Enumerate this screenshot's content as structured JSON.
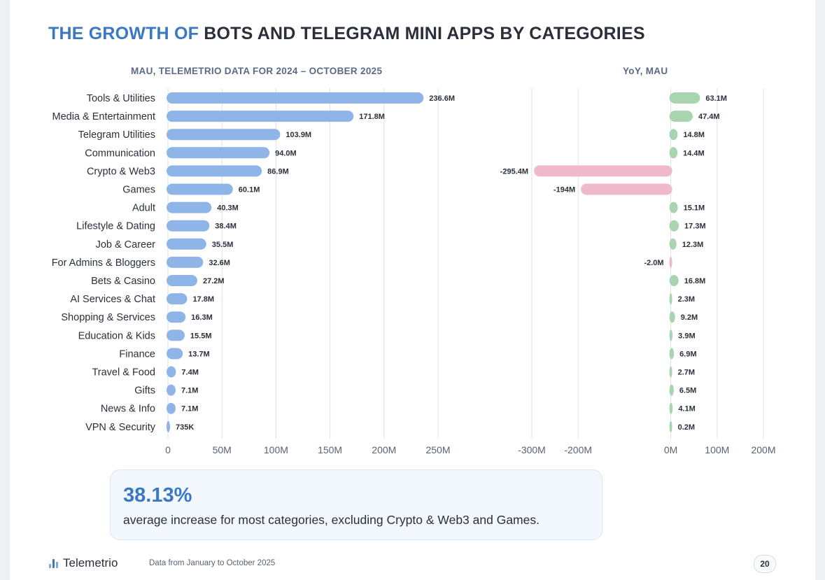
{
  "title": {
    "accent": "THE GROWTH OF",
    "rest": "BOTS AND TELEGRAM MINI APPS BY CATEGORIES"
  },
  "colors": {
    "accent": "#3b78c4",
    "mau_bar": "#8fb4e8",
    "positive_bar": "#a8d5b0",
    "negative_bar": "#f0b8cb",
    "grid": "#dde1e8"
  },
  "chart_data": [
    {
      "type": "bar",
      "orientation": "horizontal",
      "title": "MAU, TELEMETRIO DATA FOR 2024 – OCTOBER 2025",
      "categories": [
        "Tools & Utilities",
        "Media & Entertainment",
        "Telegram Utilities",
        "Communication",
        "Crypto & Web3",
        "Games",
        "Adult",
        "Lifestyle & Dating",
        "Job & Career",
        "For Admins & Bloggers",
        "Bets & Casino",
        "AI Services & Chat",
        "Shopping & Services",
        "Education & Kids",
        "Finance",
        "Travel & Food",
        "Gifts",
        "News & Info",
        "VPN & Security"
      ],
      "values": [
        236.6,
        171.8,
        103.9,
        94.0,
        86.9,
        60.1,
        40.3,
        38.4,
        35.5,
        32.6,
        27.2,
        17.8,
        16.3,
        15.5,
        13.7,
        7.4,
        7.1,
        7.1,
        0.735
      ],
      "value_labels": [
        "236.6M",
        "171.8M",
        "103.9M",
        "94.0M",
        "86.9M",
        "60.1M",
        "40.3M",
        "38.4M",
        "35.5M",
        "32.6M",
        "27.2M",
        "17.8M",
        "16.3M",
        "15.5M",
        "13.7M",
        "7.4M",
        "7.1M",
        "7.1M",
        "735K"
      ],
      "unit": "M",
      "xlim": [
        0,
        250
      ],
      "ticks": [
        0,
        50,
        100,
        150,
        200,
        250
      ],
      "tick_labels": [
        "0",
        "50M",
        "100M",
        "150M",
        "200M",
        "250M"
      ]
    },
    {
      "type": "bar",
      "orientation": "horizontal",
      "title": "YoY, MAU",
      "categories": [
        "Tools & Utilities",
        "Media & Entertainment",
        "Telegram Utilities",
        "Communication",
        "Crypto & Web3",
        "Games",
        "Adult",
        "Lifestyle & Dating",
        "Job & Career",
        "For Admins & Bloggers",
        "Bets & Casino",
        "AI Services & Chat",
        "Shopping & Services",
        "Education & Kids",
        "Finance",
        "Travel & Food",
        "Gifts",
        "News & Info",
        "VPN & Security"
      ],
      "values": [
        63.1,
        47.4,
        14.8,
        14.4,
        -295.4,
        -194,
        15.1,
        17.3,
        12.3,
        -2.0,
        16.8,
        2.3,
        9.2,
        3.9,
        6.9,
        2.7,
        6.5,
        4.1,
        0.2
      ],
      "value_labels": [
        "63.1M",
        "47.4M",
        "14.8M",
        "14.4M",
        "-295.4M",
        "-194M",
        "15.1M",
        "17.3M",
        "12.3M",
        "-2.0M",
        "16.8M",
        "2.3M",
        "9.2M",
        "3.9M",
        "6.9M",
        "2.7M",
        "6.5M",
        "4.1M",
        "0.2M"
      ],
      "unit": "M",
      "xlim": [
        -300,
        200
      ],
      "ticks": [
        -300,
        -200,
        0,
        100,
        200
      ],
      "tick_labels": [
        "-300M",
        "-200M",
        "0M",
        "100M",
        "200M"
      ]
    }
  ],
  "callout": {
    "value": "38.13%",
    "text": "average increase for most categories, excluding Crypto & Web3 and Games."
  },
  "footer": {
    "brand": "Telemetrio",
    "note": "Data from January to October 2025",
    "page": "20"
  }
}
